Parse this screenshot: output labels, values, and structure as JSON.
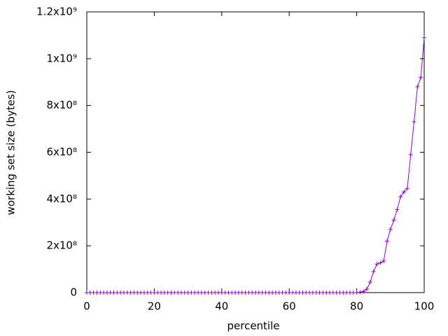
{
  "chart_data": {
    "type": "line",
    "xlabel": "percentile",
    "ylabel": "working set size (bytes)",
    "x": [
      0,
      1,
      2,
      3,
      4,
      5,
      6,
      7,
      8,
      9,
      10,
      11,
      12,
      13,
      14,
      15,
      16,
      17,
      18,
      19,
      20,
      21,
      22,
      23,
      24,
      25,
      26,
      27,
      28,
      29,
      30,
      31,
      32,
      33,
      34,
      35,
      36,
      37,
      38,
      39,
      40,
      41,
      42,
      43,
      44,
      45,
      46,
      47,
      48,
      49,
      50,
      51,
      52,
      53,
      54,
      55,
      56,
      57,
      58,
      59,
      60,
      61,
      62,
      63,
      64,
      65,
      66,
      67,
      68,
      69,
      70,
      71,
      72,
      73,
      74,
      75,
      76,
      77,
      78,
      79,
      80,
      81,
      82,
      83,
      84,
      85,
      86,
      87,
      88,
      89,
      90,
      91,
      92,
      93,
      94,
      95,
      96,
      97,
      98,
      99,
      100
    ],
    "series": [
      {
        "color": "#9400d3",
        "values": [
          0,
          0,
          0,
          0,
          0,
          0,
          0,
          0,
          0,
          0,
          0,
          0,
          0,
          0,
          0,
          0,
          0,
          0,
          0,
          0,
          0,
          0,
          0,
          0,
          0,
          0,
          0,
          0,
          0,
          0,
          0,
          0,
          0,
          0,
          0,
          0,
          0,
          0,
          0,
          0,
          0,
          0,
          0,
          0,
          0,
          0,
          0,
          0,
          0,
          0,
          0,
          0,
          0,
          0,
          0,
          0,
          0,
          0,
          0,
          0,
          0,
          0,
          0,
          0,
          0,
          0,
          0,
          0,
          0,
          0,
          0,
          0,
          0,
          0,
          0,
          0,
          0,
          0,
          0,
          0,
          0,
          2000000,
          5000000,
          15000000,
          45000000,
          90000000,
          122000000,
          127000000,
          135000000,
          220000000,
          270000000,
          310000000,
          355000000,
          410000000,
          430000000,
          445000000,
          590000000,
          730000000,
          880000000,
          920000000,
          1090000000
        ]
      }
    ],
    "xlim": [
      0,
      100
    ],
    "xticks": [
      0,
      20,
      40,
      60,
      80,
      100
    ],
    "ylim": [
      0,
      1200000000
    ],
    "yticks": [
      0,
      {
        "value": 200000000,
        "label": "2x10⁸"
      },
      {
        "value": 400000000,
        "label": "4x10⁸"
      },
      {
        "value": 600000000,
        "label": "6x10⁸"
      },
      {
        "value": 800000000,
        "label": "8x10⁸"
      },
      {
        "value": 1000000000,
        "label": "1x10⁹"
      },
      {
        "value": 1200000000,
        "label": "1.2x10⁹"
      }
    ]
  }
}
